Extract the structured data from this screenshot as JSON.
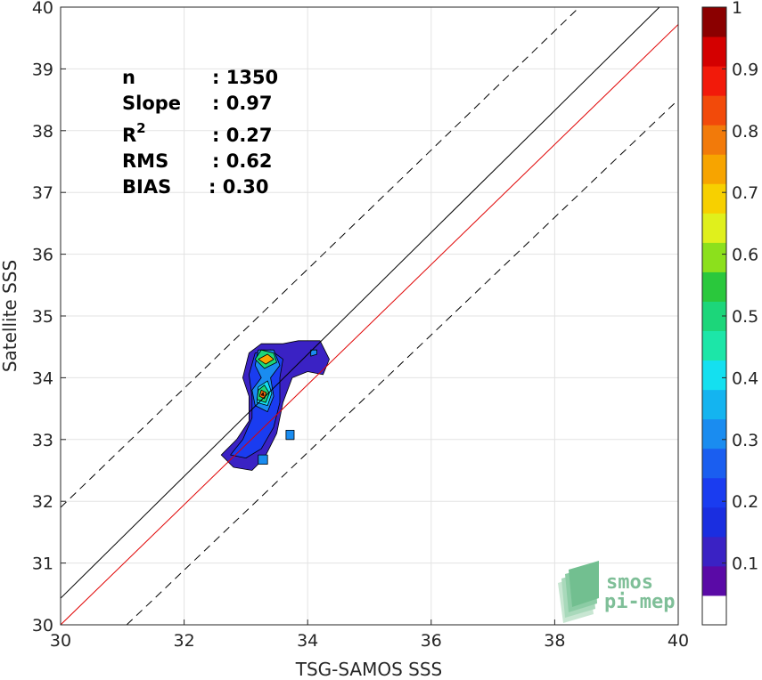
{
  "chart_data": {
    "type": "heatmap",
    "xlabel": "TSG-SAMOS SSS",
    "ylabel": "Satellite SSS",
    "xlim": [
      30,
      40
    ],
    "ylim": [
      30,
      40
    ],
    "x_ticks": [
      "30",
      "32",
      "34",
      "36",
      "38",
      "40"
    ],
    "y_ticks": [
      "30",
      "31",
      "32",
      "33",
      "34",
      "35",
      "36",
      "37",
      "38",
      "39",
      "40"
    ],
    "grid": true,
    "stats": [
      {
        "label": "n",
        "value": ": 1350"
      },
      {
        "label": "Slope",
        "value": ": 0.97"
      },
      {
        "label": "R",
        "sup": "2",
        "value": ": 0.27"
      },
      {
        "label": "RMS",
        "value": ": 0.62"
      },
      {
        "label": "BIAS",
        "value": ": 0.30"
      }
    ],
    "lines": {
      "identity": {
        "color": "#000000",
        "x": [
          30,
          40
        ],
        "y": [
          30.43,
          40.3
        ]
      },
      "fit": {
        "color": "#e00000",
        "x": [
          30,
          40
        ],
        "y": [
          30,
          39.72
        ]
      },
      "upper_bound": {
        "color": "#000000",
        "dash": true,
        "x": [
          30,
          38.4
        ],
        "y": [
          31.9,
          40
        ]
      },
      "lower_bound": {
        "color": "#000000",
        "dash": true,
        "x": [
          31.07,
          40
        ],
        "y": [
          30,
          38.5
        ]
      }
    },
    "density_contours": [
      {
        "level": 0.1,
        "color": "#3a22c4",
        "points": [
          [
            32.6,
            32.75
          ],
          [
            32.85,
            33.0
          ],
          [
            33.05,
            33.3
          ],
          [
            33.05,
            33.7
          ],
          [
            32.95,
            34.0
          ],
          [
            33.05,
            34.4
          ],
          [
            33.25,
            34.55
          ],
          [
            33.6,
            34.55
          ],
          [
            33.85,
            34.6
          ],
          [
            34.2,
            34.6
          ],
          [
            34.35,
            34.3
          ],
          [
            34.25,
            34.05
          ],
          [
            34.0,
            34.1
          ],
          [
            33.75,
            34.0
          ],
          [
            33.6,
            33.6
          ],
          [
            33.5,
            33.1
          ],
          [
            33.3,
            32.7
          ],
          [
            33.1,
            32.5
          ],
          [
            32.8,
            32.55
          ]
        ]
      },
      {
        "level": 0.2,
        "color": "#1a3cf0",
        "points": [
          [
            32.75,
            32.75
          ],
          [
            32.95,
            33.0
          ],
          [
            33.1,
            33.35
          ],
          [
            33.1,
            33.7
          ],
          [
            33.05,
            34.05
          ],
          [
            33.15,
            34.4
          ],
          [
            33.4,
            34.45
          ],
          [
            33.6,
            34.3
          ],
          [
            33.55,
            34.0
          ],
          [
            33.55,
            33.6
          ],
          [
            33.45,
            33.2
          ],
          [
            33.25,
            32.85
          ],
          [
            33.0,
            32.7
          ]
        ]
      },
      {
        "level": 0.3,
        "color": "#1a8cf0",
        "points": [
          [
            33.15,
            33.55
          ],
          [
            33.35,
            33.45
          ],
          [
            33.45,
            33.7
          ],
          [
            33.4,
            34.0
          ],
          [
            33.55,
            34.2
          ],
          [
            33.45,
            34.45
          ],
          [
            33.2,
            34.45
          ],
          [
            33.15,
            34.2
          ],
          [
            33.25,
            34.0
          ],
          [
            33.1,
            33.8
          ]
        ]
      },
      {
        "level": 0.4,
        "color": "#14e0f0",
        "points": [
          [
            33.18,
            33.6
          ],
          [
            33.35,
            33.55
          ],
          [
            33.42,
            33.75
          ],
          [
            33.35,
            33.95
          ],
          [
            33.2,
            33.85
          ]
        ]
      },
      {
        "level": 0.5,
        "color": "#1cd67a",
        "points": [
          [
            33.18,
            33.65
          ],
          [
            33.32,
            33.6
          ],
          [
            33.38,
            33.75
          ],
          [
            33.3,
            33.88
          ],
          [
            33.2,
            33.8
          ]
        ]
      },
      {
        "level": 0.5,
        "color": "#1cd67a",
        "points": [
          [
            33.15,
            34.3
          ],
          [
            33.3,
            34.15
          ],
          [
            33.5,
            34.25
          ],
          [
            33.45,
            34.4
          ],
          [
            33.25,
            34.45
          ]
        ]
      },
      {
        "level": 0.7,
        "color": "#f7a400",
        "points": [
          [
            33.2,
            34.3
          ],
          [
            33.32,
            34.22
          ],
          [
            33.45,
            34.3
          ],
          [
            33.35,
            34.38
          ]
        ]
      },
      {
        "level": 0.8,
        "color": "#f26a0a",
        "points": [
          [
            33.22,
            33.7
          ],
          [
            33.3,
            33.66
          ],
          [
            33.33,
            33.76
          ],
          [
            33.25,
            33.8
          ]
        ]
      },
      {
        "level": 1.0,
        "color": "#8b0000",
        "points": [
          [
            33.25,
            33.72
          ],
          [
            33.29,
            33.71
          ],
          [
            33.28,
            33.76
          ]
        ]
      },
      {
        "level": 0.3,
        "color": "#1a8cf0",
        "points": [
          [
            34.05,
            34.35
          ],
          [
            34.15,
            34.38
          ],
          [
            34.15,
            34.45
          ],
          [
            34.05,
            34.45
          ]
        ]
      },
      {
        "level": 0.3,
        "color": "#1a8cf0",
        "points": [
          [
            33.65,
            33.0
          ],
          [
            33.78,
            33.0
          ],
          [
            33.78,
            33.15
          ],
          [
            33.65,
            33.15
          ]
        ]
      },
      {
        "level": 0.3,
        "color": "#1a8cf0",
        "points": [
          [
            33.2,
            32.6
          ],
          [
            33.35,
            32.6
          ],
          [
            33.35,
            32.75
          ],
          [
            33.2,
            32.75
          ]
        ]
      }
    ],
    "colorbar": {
      "min": 0,
      "max": 1,
      "tick_labels": [
        "0.1",
        "0.2",
        "0.3",
        "0.4",
        "0.5",
        "0.6",
        "0.7",
        "0.8",
        "0.9",
        "1"
      ],
      "tick_values": [
        0.1,
        0.2,
        0.3,
        0.4,
        0.5,
        0.6,
        0.7,
        0.8,
        0.9,
        1.0
      ],
      "colors": [
        "#ffffff",
        "#5a0aa6",
        "#3a22c4",
        "#1a2ee0",
        "#1a3cf0",
        "#1a5ef0",
        "#1a8cf0",
        "#14b4f0",
        "#14e0f0",
        "#1ce6a8",
        "#1cd67a",
        "#2ac83c",
        "#8ce01c",
        "#e0f01c",
        "#f7d000",
        "#f7a400",
        "#f27a0a",
        "#f24a0a",
        "#f21a0a",
        "#d40000",
        "#8b0000"
      ]
    }
  },
  "logo": {
    "line1": "smos",
    "line2": "pi-mep"
  }
}
